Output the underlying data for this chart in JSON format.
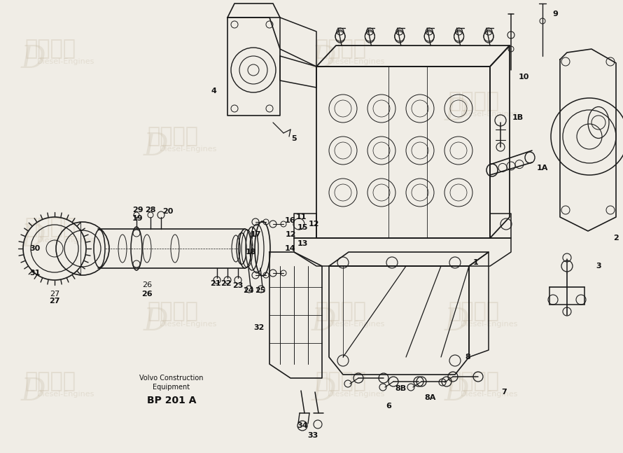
{
  "bg_color": "#f0ede6",
  "line_color": "#1a1a1a",
  "wm_color": "#c8bda8",
  "label_color": "#111111",
  "subtitle1": "Volvo Construction",
  "subtitle2": "Equipment",
  "part_number": "BP 201 A",
  "fig_w": 8.9,
  "fig_h": 6.47,
  "dpi": 100
}
